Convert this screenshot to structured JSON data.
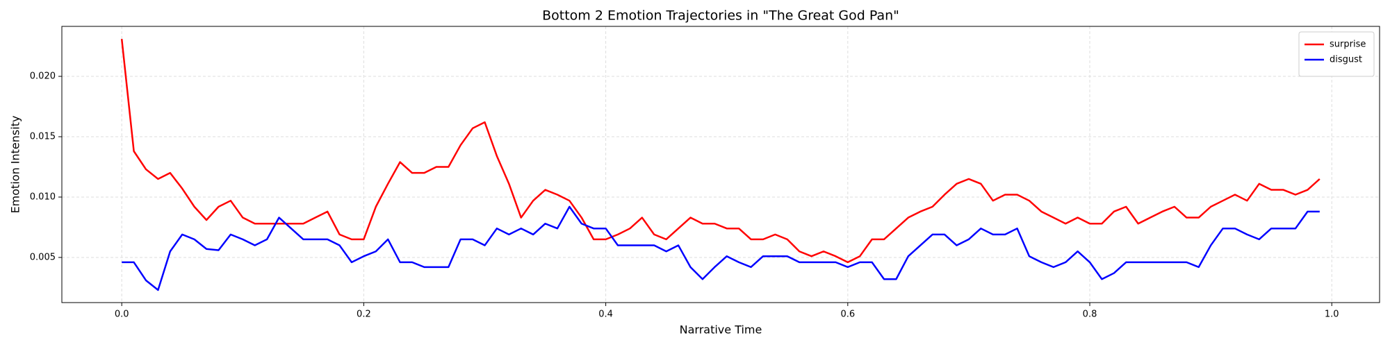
{
  "chart_data": {
    "type": "line",
    "title": "Bottom 2 Emotion Trajectories in \"The Great God Pan\"",
    "x_label": "Narrative Time",
    "y_label": "Emotion Intensity",
    "x": [
      0,
      0.01,
      0.02,
      0.03,
      0.04,
      0.05,
      0.06,
      0.07,
      0.08,
      0.09,
      0.1,
      0.11,
      0.12,
      0.13,
      0.14,
      0.15,
      0.16,
      0.17,
      0.18,
      0.19,
      0.2,
      0.21,
      0.22,
      0.23,
      0.24,
      0.25,
      0.26,
      0.27,
      0.28,
      0.29,
      0.3,
      0.31,
      0.32,
      0.33,
      0.34,
      0.35,
      0.36,
      0.37,
      0.38,
      0.39,
      0.4,
      0.41,
      0.42,
      0.43,
      0.44,
      0.45,
      0.46,
      0.47,
      0.48,
      0.49,
      0.5,
      0.51,
      0.52,
      0.53,
      0.54,
      0.55,
      0.56,
      0.57,
      0.58,
      0.59,
      0.6,
      0.61,
      0.62,
      0.63,
      0.64,
      0.65,
      0.66,
      0.67,
      0.68,
      0.69,
      0.7,
      0.71,
      0.72,
      0.73,
      0.74,
      0.75,
      0.76,
      0.77,
      0.78,
      0.79,
      0.8,
      0.81,
      0.82,
      0.83,
      0.84,
      0.85,
      0.86,
      0.87,
      0.88,
      0.89,
      0.9,
      0.91,
      0.92,
      0.93,
      0.94,
      0.95,
      0.96,
      0.97,
      0.98,
      0.99
    ],
    "series": [
      {
        "name": "surprise",
        "color": "#ff0000",
        "values": [
          0.0231,
          0.0138,
          0.0123,
          0.0115,
          0.012,
          0.0107,
          0.0092,
          0.0081,
          0.0092,
          0.0097,
          0.0083,
          0.0078,
          0.0078,
          0.0078,
          0.0078,
          0.0078,
          0.0083,
          0.0088,
          0.0069,
          0.0065,
          0.0065,
          0.0092,
          0.0111,
          0.0129,
          0.012,
          0.012,
          0.0125,
          0.0125,
          0.0143,
          0.0157,
          0.0162,
          0.0134,
          0.0111,
          0.0083,
          0.0097,
          0.0106,
          0.0102,
          0.0097,
          0.0083,
          0.0065,
          0.0065,
          0.0069,
          0.0074,
          0.0083,
          0.0069,
          0.0065,
          0.0074,
          0.0083,
          0.0078,
          0.0078,
          0.0074,
          0.0074,
          0.0065,
          0.0065,
          0.0069,
          0.0065,
          0.0055,
          0.0051,
          0.0055,
          0.0051,
          0.0046,
          0.0051,
          0.0065,
          0.0065,
          0.0074,
          0.0083,
          0.0088,
          0.0092,
          0.0102,
          0.0111,
          0.0115,
          0.0111,
          0.0097,
          0.0102,
          0.0102,
          0.0097,
          0.0088,
          0.0083,
          0.0078,
          0.0083,
          0.0078,
          0.0078,
          0.0088,
          0.0092,
          0.0078,
          0.0083,
          0.0088,
          0.0092,
          0.0083,
          0.0083,
          0.0092,
          0.0097,
          0.0102,
          0.0097,
          0.0111,
          0.0106,
          0.0106,
          0.0102,
          0.0106,
          0.0115
        ]
      },
      {
        "name": "disgust",
        "color": "#0000ff",
        "values": [
          0.0046,
          0.0046,
          0.0031,
          0.0023,
          0.0055,
          0.0069,
          0.0065,
          0.0057,
          0.0056,
          0.0069,
          0.0065,
          0.006,
          0.0065,
          0.0083,
          0.0074,
          0.0065,
          0.0065,
          0.0065,
          0.006,
          0.0046,
          0.0051,
          0.0055,
          0.0065,
          0.0046,
          0.0046,
          0.0042,
          0.0042,
          0.0042,
          0.0065,
          0.0065,
          0.006,
          0.0074,
          0.0069,
          0.0074,
          0.0069,
          0.0078,
          0.0074,
          0.0092,
          0.0078,
          0.0074,
          0.0074,
          0.006,
          0.006,
          0.006,
          0.006,
          0.0055,
          0.006,
          0.0042,
          0.0032,
          0.0042,
          0.0051,
          0.0046,
          0.0042,
          0.0051,
          0.0051,
          0.0051,
          0.0046,
          0.0046,
          0.0046,
          0.0046,
          0.0042,
          0.0046,
          0.0046,
          0.0032,
          0.0032,
          0.0051,
          0.006,
          0.0069,
          0.0069,
          0.006,
          0.0065,
          0.0074,
          0.0069,
          0.0069,
          0.0074,
          0.0051,
          0.0046,
          0.0042,
          0.0046,
          0.0055,
          0.0046,
          0.0032,
          0.0037,
          0.0046,
          0.0046,
          0.0046,
          0.0046,
          0.0046,
          0.0046,
          0.0042,
          0.006,
          0.0074,
          0.0074,
          0.0069,
          0.0065,
          0.0074,
          0.0074,
          0.0074,
          0.0088,
          0.0088
        ]
      }
    ],
    "xlim": [
      -0.0495,
      1.0395
    ],
    "ylim": [
      0.00126,
      0.02414
    ],
    "xticks": [
      {
        "value": 0,
        "label": "0.0"
      },
      0.2,
      0.4,
      0.6,
      0.8,
      {
        "value": 1,
        "label": "1.0"
      }
    ],
    "yticks": [
      0.005,
      {
        "value": 0.01,
        "label": "0.010"
      },
      0.015,
      {
        "value": 0.02,
        "label": "0.020"
      }
    ],
    "grid": true,
    "legend": "upper right"
  }
}
